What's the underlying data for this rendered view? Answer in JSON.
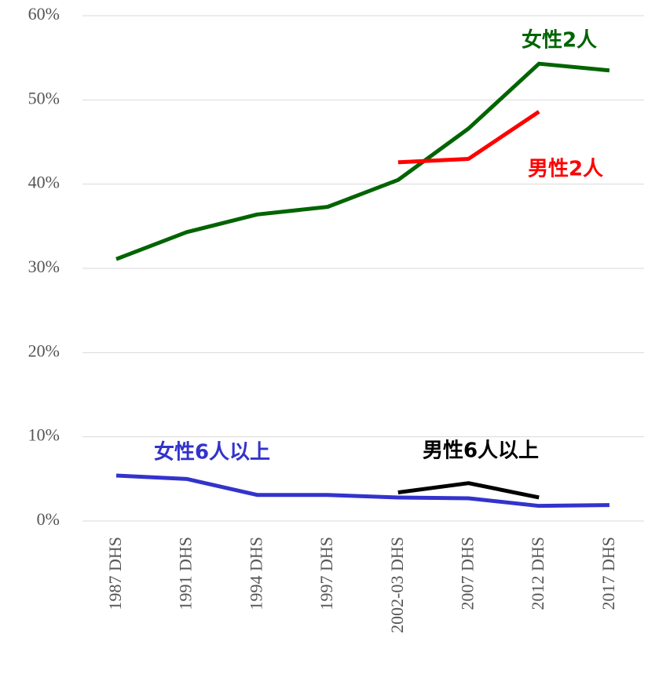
{
  "chart_data": {
    "type": "line",
    "categories": [
      "1987 DHS",
      "1991 DHS",
      "1994 DHS",
      "1997 DHS",
      "2002-03 DHS",
      "2007 DHS",
      "2012 DHS",
      "2017 DHS"
    ],
    "series": [
      {
        "name": "女性2人",
        "color": "#006400",
        "values": [
          31.1,
          34.3,
          36.4,
          37.3,
          40.5,
          46.6,
          54.3,
          53.5
        ]
      },
      {
        "name": "男性2人",
        "color": "#ff0000",
        "values": [
          null,
          null,
          null,
          null,
          42.6,
          43.0,
          48.6,
          null
        ]
      },
      {
        "name": "女性6人以上",
        "color": "#3333cc",
        "values": [
          5.4,
          5.0,
          3.1,
          3.1,
          2.8,
          2.7,
          1.8,
          1.9
        ]
      },
      {
        "name": "男性6人以上",
        "color": "#000000",
        "values": [
          null,
          null,
          null,
          null,
          3.4,
          4.5,
          2.8,
          null
        ]
      }
    ],
    "ylim": [
      0,
      60
    ],
    "yticks": [
      {
        "value": 0,
        "label": "0%"
      },
      {
        "value": 10,
        "label": "10%"
      },
      {
        "value": 20,
        "label": "20%"
      },
      {
        "value": 30,
        "label": "30%"
      },
      {
        "value": 40,
        "label": "40%"
      },
      {
        "value": 50,
        "label": "50%"
      },
      {
        "value": 60,
        "label": "60%"
      }
    ],
    "grid": true
  }
}
